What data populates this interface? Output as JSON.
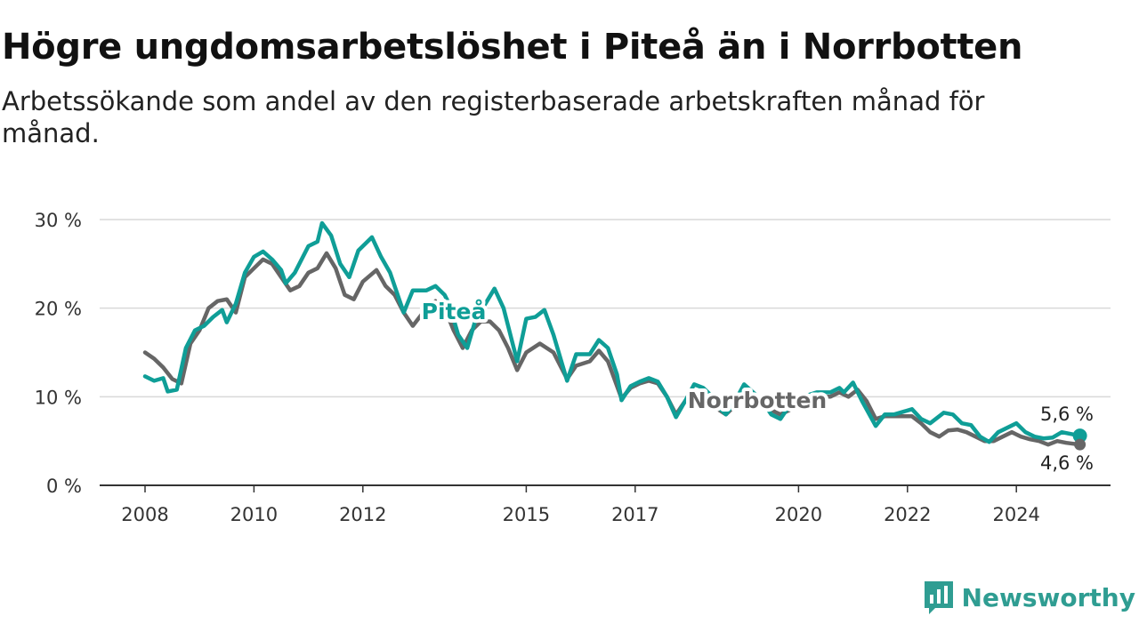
{
  "title": "Högre ungdomsarbetslöshet i Piteå än i Norrbotten",
  "subtitle": "Arbetssökande som andel av den registerbaserade arbetskraften månad för månad.",
  "brand": "Newsworthy",
  "colors": {
    "pitea": "#0f9e97",
    "norrbotten": "#666666",
    "grid": "#d9d9d9",
    "brand": "#2f9d92"
  },
  "chart_data": {
    "type": "line",
    "title": "Högre ungdomsarbetslöshet i Piteå än i Norrbotten",
    "xlabel": "",
    "ylabel": "",
    "xlim": [
      "2008-01",
      "2025-07"
    ],
    "ylim": [
      0,
      30
    ],
    "yticks": [
      0,
      10,
      20,
      30
    ],
    "ytick_labels": [
      "0 %",
      "10 %",
      "20 %",
      "30 %"
    ],
    "xticks": [
      2008,
      2010,
      2012,
      2015,
      2017,
      2020,
      2022,
      2024
    ],
    "xtick_labels": [
      "2008",
      "2010",
      "2012",
      "2015",
      "2017",
      "2020",
      "2022",
      "2024"
    ],
    "grid": "horizontal",
    "legend": "inline labels",
    "series": [
      {
        "name": "Piteå",
        "end_label": "5,6 %",
        "points": [
          [
            "2008-01",
            12.3
          ],
          [
            "2008-03",
            11.8
          ],
          [
            "2008-05",
            12.1
          ],
          [
            "2008-06",
            10.6
          ],
          [
            "2008-08",
            10.8
          ],
          [
            "2008-10",
            15.5
          ],
          [
            "2008-12",
            17.5
          ],
          [
            "2009-02",
            18.0
          ],
          [
            "2009-04",
            19.0
          ],
          [
            "2009-06",
            19.8
          ],
          [
            "2009-07",
            18.4
          ],
          [
            "2009-09",
            20.5
          ],
          [
            "2009-11",
            24.0
          ],
          [
            "2010-01",
            25.8
          ],
          [
            "2010-03",
            26.4
          ],
          [
            "2010-05",
            25.5
          ],
          [
            "2010-07",
            24.3
          ],
          [
            "2010-08",
            22.8
          ],
          [
            "2010-10",
            24.0
          ],
          [
            "2011-01",
            27.0
          ],
          [
            "2011-03",
            27.5
          ],
          [
            "2011-04",
            29.6
          ],
          [
            "2011-06",
            28.2
          ],
          [
            "2011-08",
            25.0
          ],
          [
            "2011-10",
            23.5
          ],
          [
            "2011-12",
            26.5
          ],
          [
            "2012-03",
            28.0
          ],
          [
            "2012-05",
            25.8
          ],
          [
            "2012-07",
            24.0
          ],
          [
            "2012-09",
            21.0
          ],
          [
            "2012-10",
            19.5
          ],
          [
            "2012-12",
            22.0
          ],
          [
            "2013-03",
            22.0
          ],
          [
            "2013-05",
            22.5
          ],
          [
            "2013-07",
            21.5
          ],
          [
            "2013-08",
            20.5
          ],
          [
            "2013-10",
            17.0
          ],
          [
            "2013-12",
            15.5
          ],
          [
            "2014-02",
            19.0
          ],
          [
            "2014-04",
            20.5
          ],
          [
            "2014-06",
            22.2
          ],
          [
            "2014-08",
            20.0
          ],
          [
            "2014-09",
            18.0
          ],
          [
            "2014-11",
            14.0
          ],
          [
            "2015-01",
            18.8
          ],
          [
            "2015-03",
            19.0
          ],
          [
            "2015-05",
            19.8
          ],
          [
            "2015-07",
            17.0
          ],
          [
            "2015-10",
            11.8
          ],
          [
            "2015-12",
            14.8
          ],
          [
            "2016-03",
            14.8
          ],
          [
            "2016-05",
            16.4
          ],
          [
            "2016-07",
            15.5
          ],
          [
            "2016-09",
            12.5
          ],
          [
            "2016-10",
            9.6
          ],
          [
            "2016-12",
            11.2
          ],
          [
            "2017-02",
            11.7
          ],
          [
            "2017-04",
            12.1
          ],
          [
            "2017-06",
            11.7
          ],
          [
            "2017-08",
            10.0
          ],
          [
            "2017-10",
            7.7
          ],
          [
            "2017-12",
            9.5
          ],
          [
            "2018-02",
            11.4
          ],
          [
            "2018-04",
            11.0
          ],
          [
            "2018-06",
            10.0
          ],
          [
            "2018-08",
            8.5
          ],
          [
            "2018-09",
            8.0
          ],
          [
            "2018-11",
            9.5
          ],
          [
            "2019-01",
            11.4
          ],
          [
            "2019-03",
            10.5
          ],
          [
            "2019-05",
            9.5
          ],
          [
            "2019-07",
            8.0
          ],
          [
            "2019-09",
            7.5
          ],
          [
            "2019-11",
            9.0
          ],
          [
            "2020-02",
            10.0
          ],
          [
            "2020-05",
            10.5
          ],
          [
            "2020-08",
            10.5
          ],
          [
            "2020-10",
            11.0
          ],
          [
            "2020-11",
            10.5
          ],
          [
            "2021-01",
            11.6
          ],
          [
            "2021-03",
            9.5
          ],
          [
            "2021-06",
            6.7
          ],
          [
            "2021-08",
            8.0
          ],
          [
            "2021-10",
            8.0
          ],
          [
            "2021-12",
            8.3
          ],
          [
            "2022-02",
            8.6
          ],
          [
            "2022-04",
            7.5
          ],
          [
            "2022-06",
            7.0
          ],
          [
            "2022-09",
            8.2
          ],
          [
            "2022-11",
            8.0
          ],
          [
            "2023-01",
            7.0
          ],
          [
            "2023-03",
            6.8
          ],
          [
            "2023-05",
            5.5
          ],
          [
            "2023-07",
            4.9
          ],
          [
            "2023-09",
            6.0
          ],
          [
            "2023-11",
            6.5
          ],
          [
            "2024-01",
            7.0
          ],
          [
            "2024-03",
            6.0
          ],
          [
            "2024-05",
            5.5
          ],
          [
            "2024-07",
            5.3
          ],
          [
            "2024-09",
            5.4
          ],
          [
            "2024-11",
            6.0
          ],
          [
            "2025-01",
            5.8
          ],
          [
            "2025-03",
            5.6
          ]
        ]
      },
      {
        "name": "Norrbotten",
        "end_label": "4,6 %",
        "points": [
          [
            "2008-01",
            15.0
          ],
          [
            "2008-03",
            14.3
          ],
          [
            "2008-05",
            13.3
          ],
          [
            "2008-07",
            12.0
          ],
          [
            "2008-09",
            11.5
          ],
          [
            "2008-11",
            16.0
          ],
          [
            "2009-01",
            17.5
          ],
          [
            "2009-03",
            20.0
          ],
          [
            "2009-05",
            20.8
          ],
          [
            "2009-07",
            21.0
          ],
          [
            "2009-09",
            19.5
          ],
          [
            "2009-11",
            23.5
          ],
          [
            "2010-01",
            24.5
          ],
          [
            "2010-03",
            25.5
          ],
          [
            "2010-05",
            25.0
          ],
          [
            "2010-07",
            23.5
          ],
          [
            "2010-09",
            22.0
          ],
          [
            "2010-11",
            22.5
          ],
          [
            "2011-01",
            24.0
          ],
          [
            "2011-03",
            24.5
          ],
          [
            "2011-05",
            26.2
          ],
          [
            "2011-07",
            24.5
          ],
          [
            "2011-09",
            21.5
          ],
          [
            "2011-11",
            21.0
          ],
          [
            "2012-01",
            23.0
          ],
          [
            "2012-04",
            24.3
          ],
          [
            "2012-06",
            22.5
          ],
          [
            "2012-08",
            21.5
          ],
          [
            "2012-10",
            19.5
          ],
          [
            "2012-12",
            18.0
          ],
          [
            "2013-03",
            20.0
          ],
          [
            "2013-05",
            20.8
          ],
          [
            "2013-07",
            20.0
          ],
          [
            "2013-09",
            17.5
          ],
          [
            "2013-11",
            15.5
          ],
          [
            "2014-01",
            17.5
          ],
          [
            "2014-03",
            18.5
          ],
          [
            "2014-05",
            18.5
          ],
          [
            "2014-07",
            17.5
          ],
          [
            "2014-09",
            15.5
          ],
          [
            "2014-11",
            13.0
          ],
          [
            "2015-01",
            15.0
          ],
          [
            "2015-04",
            16.0
          ],
          [
            "2015-07",
            15.0
          ],
          [
            "2015-10",
            12.0
          ],
          [
            "2015-12",
            13.5
          ],
          [
            "2016-03",
            14.0
          ],
          [
            "2016-05",
            15.2
          ],
          [
            "2016-07",
            14.0
          ],
          [
            "2016-10",
            9.8
          ],
          [
            "2016-12",
            11.0
          ],
          [
            "2017-02",
            11.5
          ],
          [
            "2017-04",
            11.8
          ],
          [
            "2017-06",
            11.5
          ],
          [
            "2017-08",
            10.0
          ],
          [
            "2017-10",
            8.0
          ],
          [
            "2017-12",
            9.5
          ],
          [
            "2018-02",
            10.5
          ],
          [
            "2018-04",
            10.0
          ],
          [
            "2018-06",
            9.0
          ],
          [
            "2018-09",
            8.0
          ],
          [
            "2018-11",
            9.0
          ],
          [
            "2019-01",
            10.0
          ],
          [
            "2019-04",
            9.5
          ],
          [
            "2019-07",
            8.5
          ],
          [
            "2019-09",
            8.0
          ],
          [
            "2019-11",
            8.5
          ],
          [
            "2020-02",
            9.5
          ],
          [
            "2020-05",
            10.0
          ],
          [
            "2020-08",
            10.0
          ],
          [
            "2020-10",
            10.5
          ],
          [
            "2020-12",
            10.0
          ],
          [
            "2021-02",
            10.8
          ],
          [
            "2021-04",
            9.5
          ],
          [
            "2021-06",
            7.5
          ],
          [
            "2021-08",
            7.8
          ],
          [
            "2021-10",
            7.8
          ],
          [
            "2021-12",
            7.8
          ],
          [
            "2022-02",
            7.8
          ],
          [
            "2022-04",
            7.0
          ],
          [
            "2022-06",
            6.0
          ],
          [
            "2022-08",
            5.5
          ],
          [
            "2022-10",
            6.2
          ],
          [
            "2022-12",
            6.3
          ],
          [
            "2023-02",
            6.0
          ],
          [
            "2023-04",
            5.5
          ],
          [
            "2023-06",
            5.0
          ],
          [
            "2023-08",
            5.0
          ],
          [
            "2023-10",
            5.5
          ],
          [
            "2023-12",
            6.0
          ],
          [
            "2024-02",
            5.5
          ],
          [
            "2024-04",
            5.2
          ],
          [
            "2024-06",
            5.0
          ],
          [
            "2024-08",
            4.6
          ],
          [
            "2024-10",
            5.0
          ],
          [
            "2024-12",
            4.8
          ],
          [
            "2025-03",
            4.6
          ]
        ]
      }
    ]
  }
}
